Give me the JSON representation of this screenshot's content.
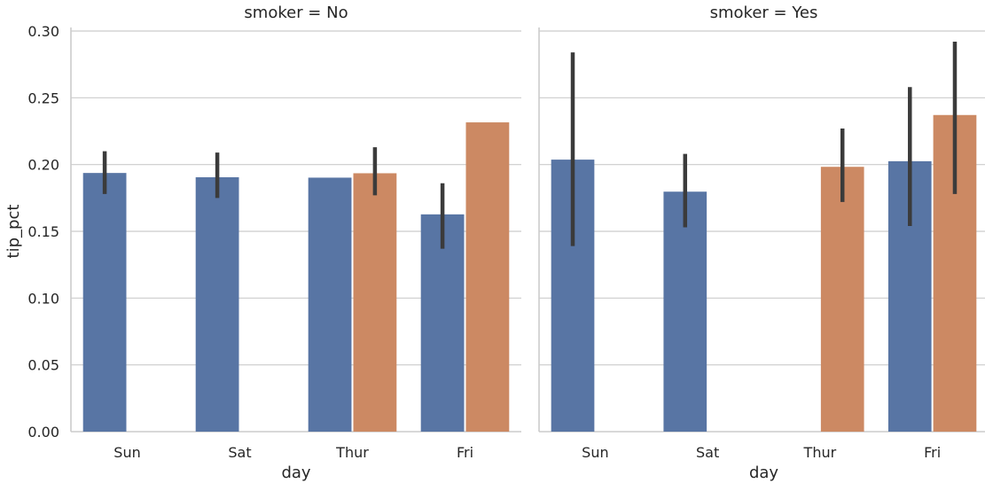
{
  "chart_data": {
    "type": "bar",
    "ylabel": "tip_pct",
    "xlabel": "day",
    "ylim": [
      0,
      0.3
    ],
    "yticks": [
      "0.00",
      "0.05",
      "0.10",
      "0.15",
      "0.20",
      "0.25",
      "0.30"
    ],
    "categories": [
      "Sun",
      "Sat",
      "Thur",
      "Fri"
    ],
    "grid": "horizontal",
    "colors": {
      "series_a": "#5875a4",
      "series_b": "#cc8963",
      "errorbar": "#3b3b3b"
    },
    "panels": [
      {
        "title": "smoker = No",
        "xlabel": "day",
        "series": [
          {
            "values": [
              0.1937,
              0.1905,
              0.1902,
              0.1627
            ],
            "error_low": [
              0.178,
              0.175,
              null,
              0.137
            ],
            "error_high": [
              0.21,
              0.209,
              null,
              0.186
            ]
          },
          {
            "values": [
              null,
              null,
              0.1935,
              0.2316
            ],
            "error_low": [
              null,
              null,
              0.177,
              null
            ],
            "error_high": [
              null,
              null,
              0.213,
              null
            ]
          }
        ]
      },
      {
        "title": "smoker = Yes",
        "xlabel": "day",
        "series": [
          {
            "values": [
              0.2037,
              0.1797,
              null,
              0.2025
            ],
            "error_low": [
              0.139,
              0.153,
              null,
              0.154
            ],
            "error_high": [
              0.284,
              0.208,
              null,
              0.258
            ]
          },
          {
            "values": [
              null,
              null,
              0.1983,
              0.2371
            ],
            "error_low": [
              null,
              null,
              0.172,
              0.178
            ],
            "error_high": [
              null,
              null,
              0.227,
              0.292
            ]
          }
        ]
      }
    ]
  }
}
